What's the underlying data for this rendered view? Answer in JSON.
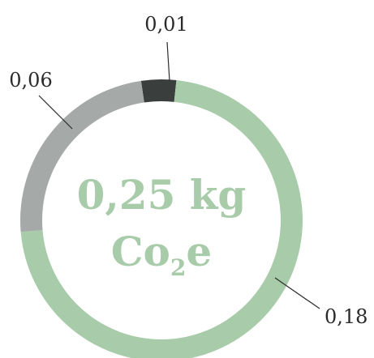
{
  "chart_data": {
    "type": "pie",
    "style": "donut",
    "center_label": {
      "value_text": "0,25 kg",
      "unit_main": "Co",
      "unit_sub": "2",
      "unit_tail": "e"
    },
    "slices": [
      {
        "value": 0.01,
        "label": "0,01",
        "color": "#3a3f3d"
      },
      {
        "value": 0.18,
        "label": "0,18",
        "color": "#a8ccaa"
      },
      {
        "value": 0.06,
        "label": "0,06",
        "color": "#a5a9a8"
      }
    ],
    "leader_line_color": "#2b2b2b",
    "center_text_color": "#a8ccaa"
  }
}
